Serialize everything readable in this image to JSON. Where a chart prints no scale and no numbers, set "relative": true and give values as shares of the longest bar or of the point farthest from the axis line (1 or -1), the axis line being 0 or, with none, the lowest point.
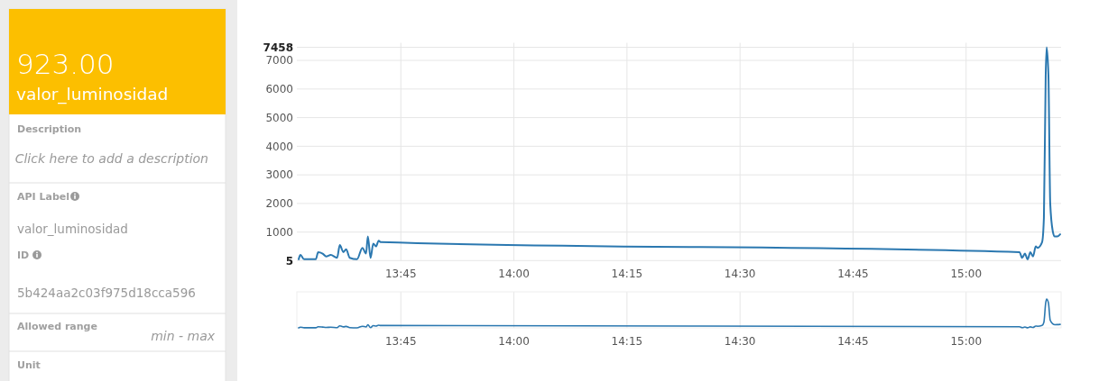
{
  "chart_data": [
    {
      "type": "other",
      "title": "923.00",
      "subtitle": "valor_luminosidad",
      "annotations": [
        "Description",
        "Click here to add a description",
        "API Label",
        "valor_luminosidad",
        "ID",
        "5b424aa2c03f975d18cca596",
        "Allowed range",
        "min - max",
        "Unit"
      ]
    },
    {
      "type": "line",
      "xlim": [
        13.52,
        15.21
      ],
      "ylim": [
        5,
        7458
      ],
      "yticks": [
        5,
        1000,
        2000,
        3000,
        4000,
        5000,
        6000,
        7000,
        7458
      ],
      "xticks": [
        {
          "value": 13.75,
          "label": "13:45"
        },
        {
          "value": 14,
          "label": "14:00"
        },
        {
          "value": 14.25,
          "label": "14:15"
        },
        {
          "value": 14.5,
          "label": "14:30"
        },
        {
          "value": 14.75,
          "label": "14:45"
        },
        {
          "value": 15,
          "label": "15:00"
        }
      ],
      "grid": true,
      "series": [
        {
          "color": "#2b78b0",
          "x": [
            13.524,
            13.528,
            13.536,
            13.562,
            13.567,
            13.577,
            13.585,
            13.595,
            13.609,
            13.615,
            13.623,
            13.629,
            13.637,
            13.653,
            13.665,
            13.673,
            13.677,
            13.683,
            13.689,
            13.695,
            13.701,
            13.705,
            15.118,
            15.124,
            15.13,
            15.136,
            15.142,
            15.148,
            15.154,
            15.158,
            15.168,
            15.172,
            15.176,
            15.178,
            15.182,
            15.186,
            15.192,
            15.196,
            15.202,
            15.208
          ],
          "values": [
            50,
            200,
            50,
            50,
            300,
            250,
            150,
            200,
            100,
            550,
            300,
            400,
            100,
            50,
            450,
            250,
            850,
            100,
            600,
            500,
            700,
            650,
            300,
            100,
            250,
            50,
            300,
            150,
            500,
            450,
            650,
            1500,
            6500,
            7458,
            6500,
            2000,
            1000,
            850,
            850,
            923
          ]
        }
      ]
    },
    {
      "type": "line",
      "relative": true,
      "xlim": [
        13.52,
        15.21
      ],
      "xticks": [
        {
          "value": 13.75,
          "label": "13:45"
        },
        {
          "value": 14,
          "label": "14:00"
        },
        {
          "value": 14.25,
          "label": "14:15"
        },
        {
          "value": 14.5,
          "label": "14:30"
        },
        {
          "value": 14.75,
          "label": "14:45"
        },
        {
          "value": 15,
          "label": "15:00"
        }
      ],
      "grid": "x",
      "tick_labels": "x",
      "series": [
        {
          "color": "#2b78b0",
          "x": [
            13.524,
            13.528,
            13.536,
            13.562,
            13.567,
            13.577,
            13.585,
            13.595,
            13.609,
            13.615,
            13.623,
            13.629,
            13.637,
            13.653,
            13.665,
            13.673,
            13.677,
            13.683,
            13.689,
            13.695,
            13.701,
            13.705,
            15.118,
            15.124,
            15.13,
            15.136,
            15.142,
            15.148,
            15.154,
            15.158,
            15.168,
            15.172,
            15.176,
            15.178,
            15.182,
            15.186,
            15.192,
            15.196,
            15.202,
            15.208
          ],
          "values": [
            0,
            0.024,
            0.004,
            0.005,
            0.038,
            0.027,
            0.016,
            0.023,
            0.008,
            0.071,
            0.036,
            0.05,
            0.009,
            0,
            0.057,
            0.03,
            0.109,
            0.009,
            0.078,
            0.063,
            0.092,
            0.082,
            0.039,
            0.007,
            0.03,
            0.003,
            0.036,
            0.016,
            0.063,
            0.057,
            0.085,
            0.198,
            0.871,
            1,
            0.871,
            0.265,
            0.134,
            0.109,
            0.113,
            0.12
          ]
        }
      ]
    }
  ]
}
